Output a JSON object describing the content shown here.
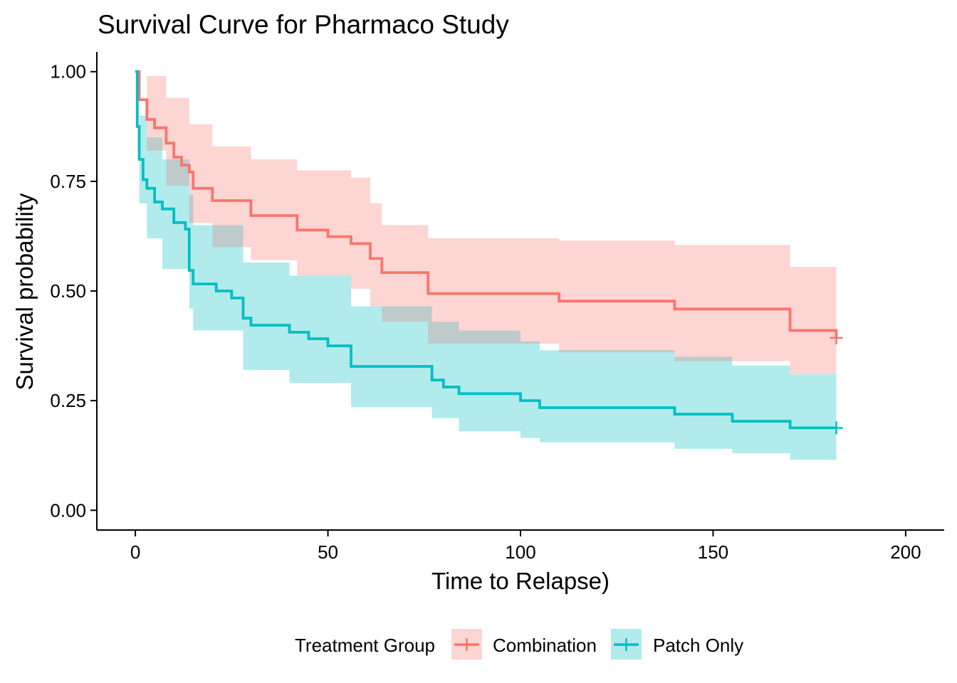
{
  "chart_data": {
    "type": "line",
    "title": "Survival Curve for Pharmaco Study",
    "xlabel": "Time to Relapse)",
    "ylabel": "Survival probability",
    "xlim": [
      -10,
      210
    ],
    "ylim": [
      -0.045,
      1.045
    ],
    "x_ticks": [
      0,
      50,
      100,
      150,
      200
    ],
    "x_tick_labels": [
      "0",
      "50",
      "100",
      "150",
      "200"
    ],
    "y_ticks": [
      0,
      0.25,
      0.5,
      0.75,
      1.0
    ],
    "y_tick_labels": [
      "0.00",
      "0.25",
      "0.50",
      "0.75",
      "1.00"
    ],
    "grid": false,
    "legend": {
      "position": "bottom",
      "title": "Treatment Group"
    },
    "series": [
      {
        "name": "Combination",
        "color": "#F8766D",
        "fill": "#FDD5D3",
        "step": {
          "t": [
            0,
            1,
            3,
            5,
            8,
            10,
            12,
            14,
            15,
            20,
            30,
            42,
            50,
            56,
            61,
            64,
            76,
            110,
            140,
            170,
            182
          ],
          "s": [
            1.0,
            0.936,
            0.891,
            0.872,
            0.837,
            0.805,
            0.787,
            0.771,
            0.734,
            0.706,
            0.672,
            0.639,
            0.624,
            0.608,
            0.574,
            0.542,
            0.494,
            0.477,
            0.459,
            0.41,
            0.393
          ]
        },
        "band_upper": {
          "t": [
            0,
            3,
            8,
            14,
            20,
            30,
            42,
            56,
            61,
            64,
            76,
            110,
            140,
            170
          ],
          "s": [
            1.0,
            0.99,
            0.94,
            0.88,
            0.83,
            0.8,
            0.775,
            0.758,
            0.7,
            0.65,
            0.62,
            0.615,
            0.605,
            0.555
          ]
        },
        "band_lower": {
          "t": [
            0,
            3,
            8,
            14,
            20,
            30,
            42,
            56,
            61,
            64,
            76,
            110,
            140,
            170
          ],
          "s": [
            1.0,
            0.82,
            0.74,
            0.655,
            0.6,
            0.57,
            0.535,
            0.505,
            0.465,
            0.43,
            0.38,
            0.36,
            0.34,
            0.31
          ]
        },
        "censor": [
          {
            "t": 182,
            "s": 0.393
          }
        ]
      },
      {
        "name": "Patch Only",
        "color": "#00BFC4",
        "fill": "#B2EBEC",
        "step": {
          "t": [
            0,
            0.5,
            1,
            2,
            3,
            5,
            7,
            10,
            13,
            14,
            15,
            21,
            25,
            28,
            30,
            40,
            45,
            50,
            56,
            77,
            80,
            84,
            100,
            105,
            140,
            155,
            170,
            182
          ],
          "s": [
            1.0,
            0.875,
            0.8,
            0.754,
            0.734,
            0.703,
            0.687,
            0.656,
            0.641,
            0.547,
            0.516,
            0.5,
            0.484,
            0.438,
            0.422,
            0.406,
            0.391,
            0.375,
            0.328,
            0.297,
            0.281,
            0.266,
            0.25,
            0.234,
            0.219,
            0.203,
            0.188,
            0.188
          ]
        },
        "band_upper": {
          "t": [
            0,
            1,
            3,
            7,
            14,
            15,
            28,
            40,
            56,
            77,
            84,
            100,
            105,
            140,
            155,
            170
          ],
          "s": [
            1.0,
            0.9,
            0.85,
            0.8,
            0.72,
            0.65,
            0.565,
            0.535,
            0.465,
            0.43,
            0.41,
            0.385,
            0.365,
            0.35,
            0.33,
            0.31
          ]
        },
        "band_lower": {
          "t": [
            0,
            1,
            3,
            7,
            14,
            15,
            28,
            40,
            56,
            77,
            84,
            100,
            105,
            140,
            155,
            170
          ],
          "s": [
            1.0,
            0.7,
            0.62,
            0.55,
            0.46,
            0.41,
            0.32,
            0.29,
            0.235,
            0.21,
            0.18,
            0.165,
            0.155,
            0.14,
            0.13,
            0.115
          ]
        },
        "censor": [
          {
            "t": 182,
            "s": 0.188
          }
        ]
      }
    ],
    "band_end_t": 182,
    "overlap_fill": "#BFCACA"
  }
}
